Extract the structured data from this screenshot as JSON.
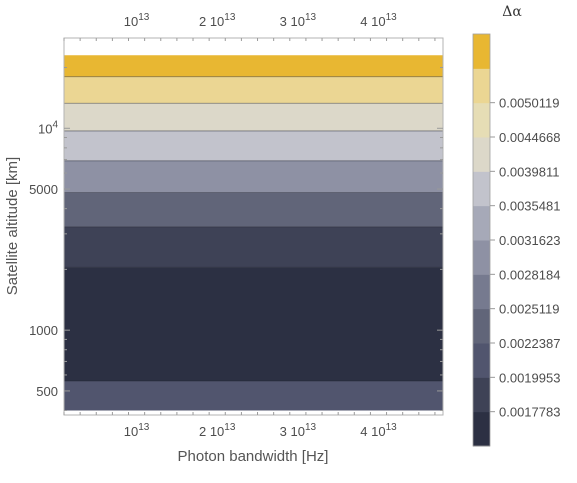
{
  "chart_data": {
    "type": "heatmap",
    "subtype": "contour",
    "xlabel": "Photon bandwidth [Hz]",
    "ylabel": "Satellite altitude [km]",
    "x_scale": "linear",
    "y_scale": "log",
    "xlim": [
      1000000000000,
      48000000000000
    ],
    "ylim": [
      380,
      28000
    ],
    "data_extent": {
      "x": [
        1000000000000,
        48000000000000
      ],
      "y": [
        400,
        23000
      ]
    },
    "x_ticks": [
      {
        "value": 10000000000000,
        "mant": "",
        "base": "10",
        "exp": "13"
      },
      {
        "value": 20000000000000,
        "mant": "2 ",
        "base": "10",
        "exp": "13"
      },
      {
        "value": 30000000000000,
        "mant": "3 ",
        "base": "10",
        "exp": "13"
      },
      {
        "value": 40000000000000,
        "mant": "4 ",
        "base": "10",
        "exp": "13"
      }
    ],
    "y_ticks": [
      {
        "value": 500,
        "text": "500"
      },
      {
        "value": 1000,
        "text": "1000"
      },
      {
        "value": 5000,
        "text": "5000"
      },
      {
        "value": 10000,
        "text": "",
        "base": "10",
        "exp": "4"
      }
    ],
    "bands": [
      {
        "y_from": 400,
        "y_to": 560,
        "color": "#51556e"
      },
      {
        "y_from": 560,
        "y_to": 2050,
        "color": "#2c3043"
      },
      {
        "y_from": 2050,
        "y_to": 3250,
        "color": "#3e4256"
      },
      {
        "y_from": 3250,
        "y_to": 4800,
        "color": "#616579"
      },
      {
        "y_from": 4800,
        "y_to": 6900,
        "color": "#8e91a4"
      },
      {
        "y_from": 6900,
        "y_to": 9700,
        "color": "#c2c3cc"
      },
      {
        "y_from": 9700,
        "y_to": 13300,
        "color": "#dcd8c9"
      },
      {
        "y_from": 13300,
        "y_to": 18000,
        "color": "#ebd693"
      },
      {
        "y_from": 18000,
        "y_to": 23000,
        "color": "#e8b732"
      }
    ],
    "colorbar": {
      "title": "Δα",
      "colors": [
        "#2c3043",
        "#3e4256",
        "#51556e",
        "#616579",
        "#767a8f",
        "#8e91a4",
        "#a6a9b8",
        "#c2c3cc",
        "#dcd8c9",
        "#e6ddb5",
        "#ebd693",
        "#e8b732"
      ],
      "labels": [
        "0.0017783",
        "0.0019953",
        "0.0022387",
        "0.0025119",
        "0.0028184",
        "0.0031623",
        "0.0035481",
        "0.0039811",
        "0.0044668",
        "0.0050119"
      ]
    }
  }
}
